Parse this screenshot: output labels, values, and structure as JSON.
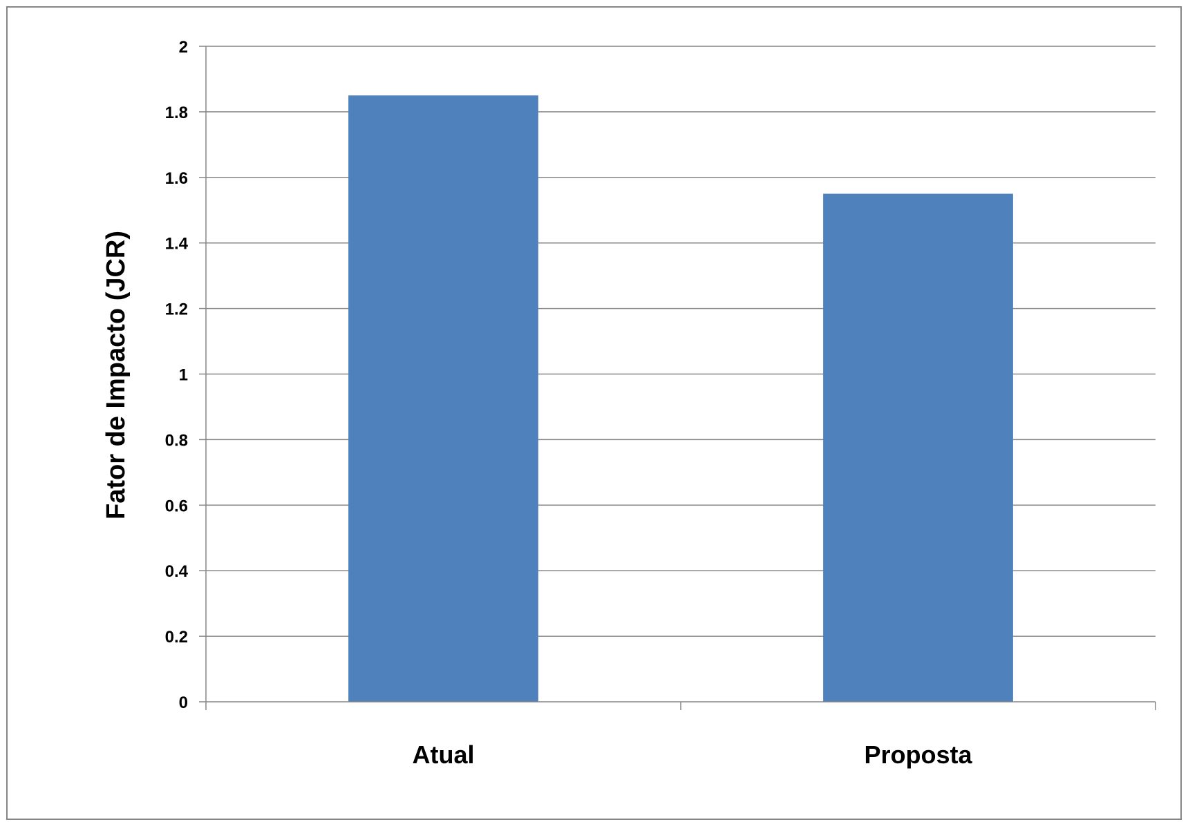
{
  "chart_data": {
    "type": "bar",
    "title": "",
    "xlabel": "",
    "ylabel": "Fator de Impacto (JCR)",
    "categories": [
      "Atual",
      "Proposta"
    ],
    "series": [
      {
        "values": [
          1.85,
          1.55
        ]
      }
    ],
    "ylim": [
      0,
      2
    ],
    "yticks": [
      "0",
      "0.2",
      "0.4",
      "0.6",
      "0.8",
      "1",
      "1.2",
      "1.4",
      "1.6",
      "1.8",
      "2"
    ],
    "grid": "horizontal",
    "legend": "none",
    "colors": {
      "bar": "#4F81BD",
      "gridline": "#868686",
      "frame": "#868686"
    }
  }
}
